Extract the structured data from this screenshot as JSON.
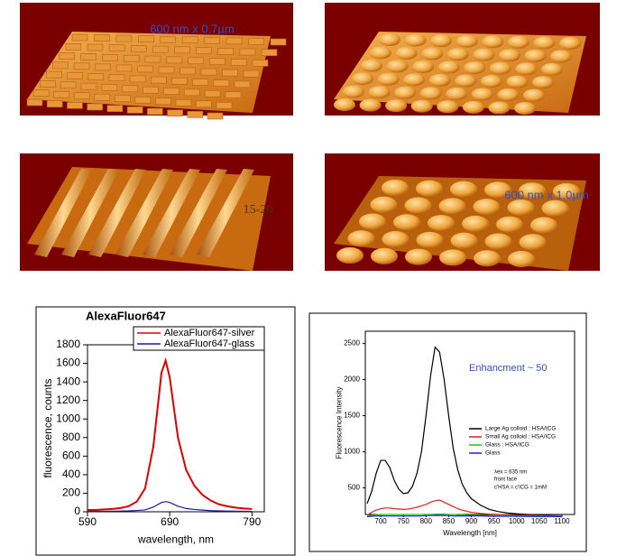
{
  "images": [
    {
      "label": "600 nm x 0.7µm"
    },
    {
      "label": "15-20"
    },
    {
      "label": "600 nm x 1.0µm"
    }
  ],
  "chart_data": [
    {
      "type": "line",
      "title": "AlexaFluor647",
      "x_label": "wavelength, nm",
      "y_label": "fluorescence, counts",
      "x": [
        590,
        600,
        610,
        620,
        630,
        640,
        650,
        660,
        670,
        680,
        685,
        690,
        700,
        710,
        720,
        730,
        740,
        750,
        760,
        770,
        780,
        790
      ],
      "series": [
        {
          "name": "AlexaFluor647-silver",
          "color": "#e00000",
          "values": [
            20,
            20,
            25,
            30,
            40,
            60,
            110,
            250,
            700,
            1500,
            1630,
            1450,
            800,
            450,
            280,
            180,
            120,
            80,
            60,
            45,
            35,
            30
          ]
        },
        {
          "name": "AlexaFluor647-glass",
          "color": "#1a1aa0",
          "values": [
            5,
            5,
            5,
            6,
            8,
            10,
            14,
            20,
            50,
            100,
            110,
            100,
            60,
            35,
            25,
            18,
            12,
            10,
            8,
            6,
            5,
            5
          ]
        }
      ],
      "xlim": [
        590,
        805
      ],
      "ylim": [
        0,
        1800
      ],
      "xticks": [
        590,
        690,
        790
      ],
      "yticks": [
        0,
        200,
        400,
        600,
        800,
        1000,
        1200,
        1400,
        1600,
        1800
      ]
    },
    {
      "type": "line",
      "x_label": "Wavelength [nm]",
      "y_label": "Fluorescence Intensity",
      "annotations": [
        "Enhancment ~ 50",
        "λex = 635 nm",
        "front face",
        "c'HSA = c'ICG = 1mM"
      ],
      "x": [
        670,
        680,
        690,
        700,
        710,
        720,
        730,
        740,
        750,
        760,
        770,
        780,
        790,
        800,
        810,
        820,
        830,
        840,
        850,
        860,
        870,
        880,
        890,
        900,
        920,
        940,
        960,
        980,
        1000,
        1050,
        1100
      ],
      "series": [
        {
          "name": "Large Ag colloid : HSA/ICG",
          "color": "#000000",
          "values": [
            280,
            450,
            700,
            880,
            880,
            780,
            600,
            480,
            420,
            430,
            520,
            700,
            1000,
            1500,
            2050,
            2450,
            2380,
            2000,
            1500,
            1050,
            750,
            550,
            430,
            350,
            260,
            200,
            170,
            150,
            140,
            120,
            110
          ]
        },
        {
          "name": "Small Ag colloid : HSA/ICG",
          "color": "#e02020",
          "values": [
            120,
            160,
            190,
            210,
            220,
            220,
            210,
            205,
            200,
            205,
            215,
            230,
            250,
            270,
            300,
            320,
            330,
            300,
            270,
            240,
            210,
            190,
            175,
            160,
            145,
            135,
            130,
            125,
            120,
            115,
            110
          ]
        },
        {
          "name": "Glass : HSA/ICG",
          "color": "#20c020",
          "values": [
            110,
            120,
            125,
            130,
            130,
            130,
            130,
            130,
            130,
            130,
            130,
            130,
            130,
            130,
            130,
            135,
            135,
            135,
            130,
            130,
            125,
            125,
            120,
            120,
            120,
            115,
            115,
            115,
            110,
            110,
            105
          ]
        },
        {
          "name": "Glass",
          "color": "#2020e0",
          "values": [
            100,
            105,
            110,
            110,
            110,
            110,
            110,
            110,
            110,
            110,
            110,
            110,
            110,
            115,
            115,
            115,
            115,
            115,
            115,
            110,
            110,
            110,
            110,
            110,
            110,
            105,
            105,
            105,
            105,
            100,
            100
          ]
        }
      ],
      "xlim": [
        666,
        1128
      ],
      "ylim": [
        130,
        2670
      ],
      "xticks": [
        700,
        750,
        800,
        850,
        900,
        950,
        1000,
        1050,
        1100
      ],
      "yticks": [
        500,
        1000,
        1500,
        2000,
        2500
      ]
    }
  ]
}
